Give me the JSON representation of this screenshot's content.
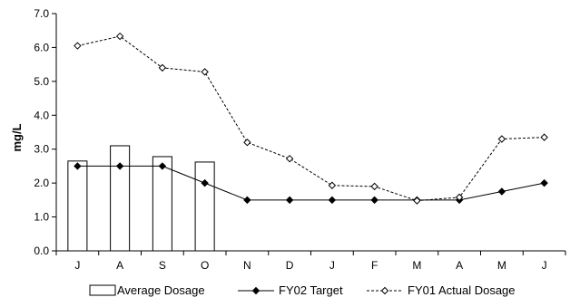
{
  "chart_data": {
    "type": "bar+line",
    "categories": [
      "J",
      "A",
      "S",
      "O",
      "N",
      "D",
      "J",
      "F",
      "M",
      "A",
      "M",
      "J"
    ],
    "ylabel": "mg/L",
    "ylim": [
      0,
      7
    ],
    "yticks": [
      "0.0",
      "1.0",
      "2.0",
      "3.0",
      "4.0",
      "5.0",
      "6.0",
      "7.0"
    ],
    "grid": false,
    "legend_position": "bottom",
    "series": [
      {
        "name": "Average Dosage",
        "kind": "bar",
        "values": [
          2.65,
          3.1,
          2.78,
          2.62,
          null,
          null,
          null,
          null,
          null,
          null,
          null,
          null
        ]
      },
      {
        "name": "FY02 Target",
        "kind": "line-solid-diamond-filled",
        "values": [
          2.5,
          2.5,
          2.5,
          2.0,
          1.5,
          1.5,
          1.5,
          1.5,
          1.5,
          1.5,
          1.75,
          2.0
        ]
      },
      {
        "name": "FY01 Actual Dosage",
        "kind": "line-dotted-diamond-open",
        "values": [
          6.05,
          6.33,
          5.4,
          5.28,
          3.2,
          2.72,
          1.93,
          1.9,
          1.48,
          1.58,
          3.3,
          3.35
        ]
      }
    ]
  }
}
